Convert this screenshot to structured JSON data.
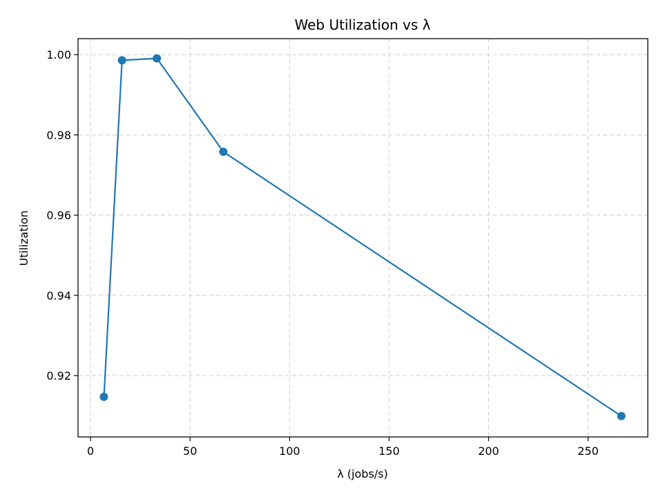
{
  "chart_data": {
    "type": "line",
    "title": "Web Utilization vs λ",
    "xlabel": "λ (jobs/s)",
    "ylabel": "Utilization",
    "xlim": [
      -6.3,
      280
    ],
    "ylim": [
      0.9047,
      1.004
    ],
    "xticks": [
      0,
      50,
      100,
      150,
      200,
      250
    ],
    "yticks": [
      0.92,
      0.94,
      0.96,
      0.98,
      1.0
    ],
    "xtick_labels": [
      "0",
      "50",
      "100",
      "150",
      "200",
      "250"
    ],
    "ytick_labels": [
      "0.92",
      "0.94",
      "0.96",
      "0.98",
      "1.00"
    ],
    "grid": true,
    "series": [
      {
        "color": "#1f77b4",
        "marker": "circle",
        "points": [
          {
            "x": 6.7,
            "y": 0.9147
          },
          {
            "x": 15.8,
            "y": 0.9986
          },
          {
            "x": 33.3,
            "y": 0.9991
          },
          {
            "x": 66.7,
            "y": 0.9758
          },
          {
            "x": 266.7,
            "y": 0.9099
          }
        ]
      }
    ]
  }
}
